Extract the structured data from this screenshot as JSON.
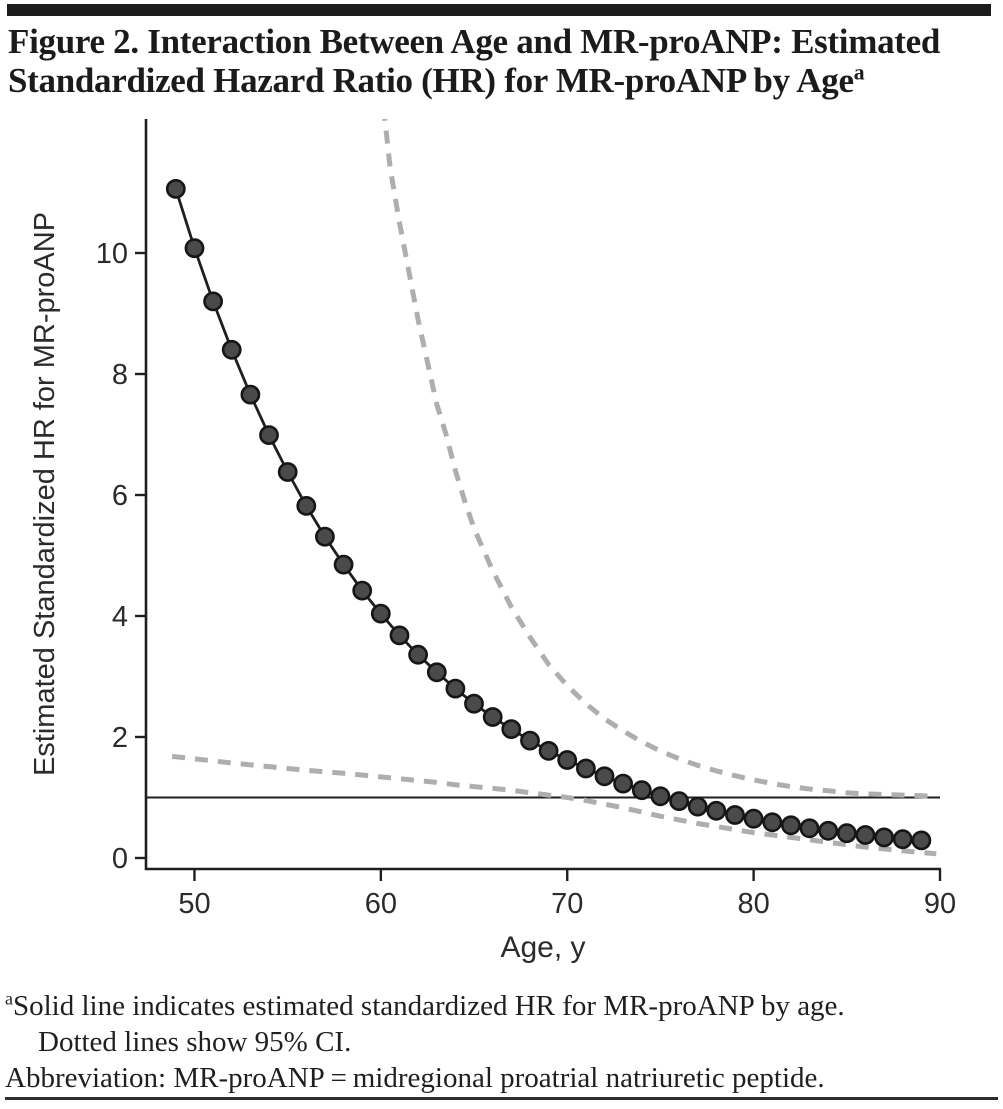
{
  "figure": {
    "title_line1": "Figure 2. Interaction Between Age and MR-proANP: Estimated",
    "title_line2": "Standardized Hazard Ratio (HR) for MR-proANP by Age",
    "title_superscript": "a"
  },
  "footnotes": {
    "superscript": "a",
    "line1": "Solid line indicates estimated standardized HR for MR-proANP by age.",
    "line2": "Dotted lines show 95% CI.",
    "line3": "Abbreviation: MR-proANP = midregional proatrial natriuretic peptide."
  },
  "chart_data": {
    "type": "line",
    "title": "Figure 2. Interaction Between Age and MR-proANP: Estimated Standardized Hazard Ratio (HR) for MR-proANP by Age",
    "xlabel": "Age, y",
    "ylabel": "Estimated Standardized HR for MR-proANP",
    "xticks": [
      50,
      60,
      70,
      80,
      90
    ],
    "yticks": [
      0,
      2,
      4,
      6,
      8,
      10
    ],
    "xlim": [
      47.4,
      90
    ],
    "ylim": [
      0,
      12.2
    ],
    "grid": false,
    "legend_position": "none",
    "reference_line_y": 1.0,
    "series": [
      {
        "name": "Estimated standardized HR for MR-proANP",
        "style": "solid-line-with-circle-markers",
        "x": [
          49,
          50,
          51,
          52,
          53,
          54,
          55,
          56,
          57,
          58,
          59,
          60,
          61,
          62,
          63,
          64,
          65,
          66,
          67,
          68,
          69,
          70,
          71,
          72,
          73,
          74,
          75,
          76,
          77,
          78,
          79,
          80,
          81,
          82,
          83,
          84,
          85,
          86,
          87,
          88,
          89
        ],
        "y": [
          11.06,
          10.08,
          9.2,
          8.4,
          7.66,
          6.99,
          6.38,
          5.82,
          5.31,
          4.85,
          4.42,
          4.04,
          3.68,
          3.36,
          3.07,
          2.8,
          2.55,
          2.33,
          2.13,
          1.94,
          1.77,
          1.62,
          1.48,
          1.35,
          1.23,
          1.12,
          1.02,
          0.94,
          0.85,
          0.78,
          0.71,
          0.65,
          0.59,
          0.54,
          0.49,
          0.45,
          0.41,
          0.38,
          0.34,
          0.31,
          0.29
        ]
      },
      {
        "name": "95% CI upper bound",
        "style": "dashed",
        "points": [
          [
            60.15,
            12.4
          ],
          [
            60.5,
            11.4
          ],
          [
            61,
            10.5
          ],
          [
            61.5,
            9.7
          ],
          [
            62,
            8.9
          ],
          [
            62.5,
            8.2
          ],
          [
            63,
            7.5
          ],
          [
            63.5,
            7.0
          ],
          [
            64,
            6.4
          ],
          [
            64.5,
            5.9
          ],
          [
            65,
            5.45
          ],
          [
            66,
            4.75
          ],
          [
            67,
            4.15
          ],
          [
            68,
            3.65
          ],
          [
            69,
            3.2
          ],
          [
            70,
            2.85
          ],
          [
            71,
            2.55
          ],
          [
            72,
            2.3
          ],
          [
            73,
            2.1
          ],
          [
            74,
            1.92
          ],
          [
            75,
            1.77
          ],
          [
            76,
            1.64
          ],
          [
            77,
            1.53
          ],
          [
            78,
            1.44
          ],
          [
            79,
            1.36
          ],
          [
            80,
            1.29
          ],
          [
            81,
            1.23
          ],
          [
            82,
            1.18
          ],
          [
            83,
            1.14
          ],
          [
            84,
            1.11
          ],
          [
            85,
            1.08
          ],
          [
            86,
            1.06
          ],
          [
            87,
            1.05
          ],
          [
            88,
            1.04
          ],
          [
            89,
            1.03
          ],
          [
            89.8,
            1.02
          ]
        ]
      },
      {
        "name": "95% CI lower bound",
        "style": "dashed",
        "points": [
          [
            48.8,
            1.68
          ],
          [
            50,
            1.64
          ],
          [
            52,
            1.57
          ],
          [
            54,
            1.51
          ],
          [
            56,
            1.45
          ],
          [
            58,
            1.4
          ],
          [
            60,
            1.34
          ],
          [
            61,
            1.31
          ],
          [
            62,
            1.28
          ],
          [
            63,
            1.25
          ],
          [
            64,
            1.21
          ],
          [
            65,
            1.18
          ],
          [
            66,
            1.15
          ],
          [
            67,
            1.12
          ],
          [
            68,
            1.08
          ],
          [
            69,
            1.04
          ],
          [
            70,
            1.0
          ],
          [
            71,
            0.95
          ],
          [
            72,
            0.89
          ],
          [
            73,
            0.83
          ],
          [
            74,
            0.76
          ],
          [
            75,
            0.69
          ],
          [
            76,
            0.63
          ],
          [
            77,
            0.57
          ],
          [
            78,
            0.52
          ],
          [
            79,
            0.47
          ],
          [
            80,
            0.42
          ],
          [
            81,
            0.38
          ],
          [
            82,
            0.34
          ],
          [
            83,
            0.3
          ],
          [
            84,
            0.26
          ],
          [
            85,
            0.22
          ],
          [
            86,
            0.18
          ],
          [
            87,
            0.15
          ],
          [
            88,
            0.12
          ],
          [
            89,
            0.09
          ],
          [
            89.8,
            0.07
          ]
        ]
      }
    ],
    "colors": {
      "solid_line": "#1f1f1f",
      "marker_fill": "#4a4a4a",
      "marker_stroke": "#161616",
      "ci_dashed": "#aeaeae",
      "reference_line": "#1f1f1f",
      "axis": "#1f1f1f",
      "tick_text": "#2b2b2b"
    }
  }
}
